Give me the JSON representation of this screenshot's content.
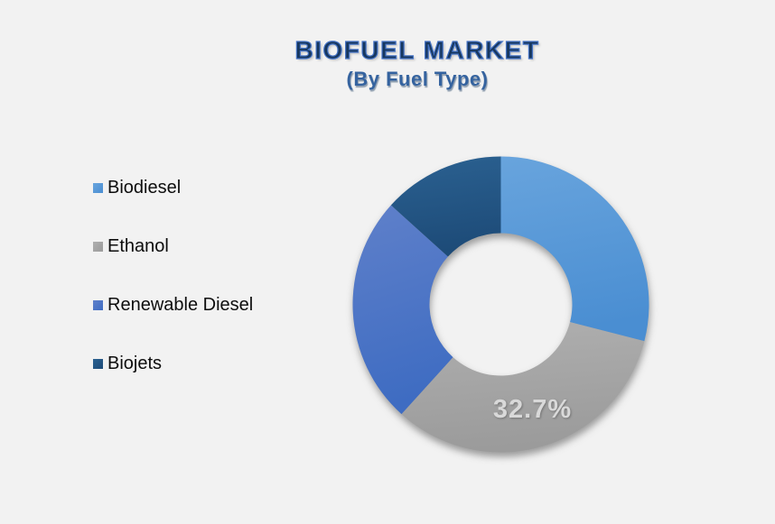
{
  "page": {
    "background_color": "#F2F2F2"
  },
  "header": {
    "title": "BIOFUEL MARKET",
    "subtitle": "(By Fuel Type)",
    "title_color": "#17375E",
    "title_outline_color": "#4472C4",
    "subtitle_color": "#35639F"
  },
  "chart_data": {
    "type": "pie",
    "subtype": "donut",
    "title": "BIOFUEL MARKET",
    "subtitle": "(By Fuel Type)",
    "categories": [
      "Biodiesel",
      "Ethanol",
      "Renewable Diesel",
      "Biojets"
    ],
    "values": [
      29.0,
      32.7,
      25.0,
      13.3
    ],
    "unit": "%",
    "start_angle_deg": 0,
    "direction": "clockwise",
    "inner_radius_ratio": 0.48,
    "legend_position": "left",
    "grid": false,
    "colors": [
      "#5B9BD5",
      "#A6A6A6",
      "#4472C4",
      "#255E91"
    ],
    "slice_gradients": [
      {
        "from": "#68A4DD",
        "to": "#4A8ED2"
      },
      {
        "from": "#AFAFAF",
        "to": "#9B9B9B"
      },
      {
        "from": "#5F80CA",
        "to": "#3E6CC2"
      },
      {
        "from": "#2B6191",
        "to": "#1D4B78"
      }
    ],
    "data_labels": [
      {
        "index": 1,
        "text": "32.7%",
        "color": "#D9D9D9"
      }
    ]
  }
}
